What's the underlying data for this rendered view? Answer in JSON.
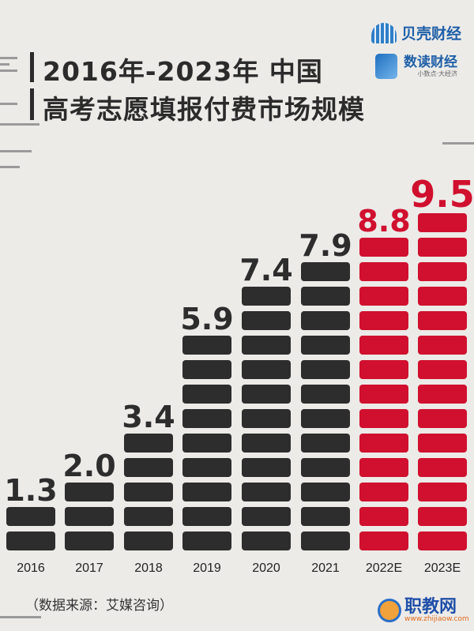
{
  "title": {
    "line1": "2016年-2023年 中国",
    "line2": "高考志愿填报付费市场规模"
  },
  "logos": {
    "brand1": "贝壳财经",
    "brand2": "数读财经",
    "brand2_slogan": "小数点·大经济"
  },
  "source": "（数据来源：艾媒咨询）",
  "watermark": {
    "name": "职教网",
    "url": "www.zhijiaow.com"
  },
  "chart_data": {
    "type": "bar",
    "title": "2016年-2023年 中国 高考志愿填报付费市场规模",
    "categories": [
      "2016",
      "2017",
      "2018",
      "2019",
      "2020",
      "2021",
      "2022E",
      "2023E"
    ],
    "values": [
      1.3,
      2.0,
      3.4,
      5.9,
      7.4,
      7.9,
      8.8,
      9.5
    ],
    "value_labels": [
      "1.3",
      "2.0",
      "3.4",
      "5.9",
      "7.4",
      "7.9",
      "8.8",
      "9.5"
    ],
    "colors": {
      "actual": "#2d2d2d",
      "estimate": "#d0102e"
    },
    "estimate_categories": [
      "2022E",
      "2023E"
    ],
    "style": "stacked blocks",
    "grid": false
  }
}
